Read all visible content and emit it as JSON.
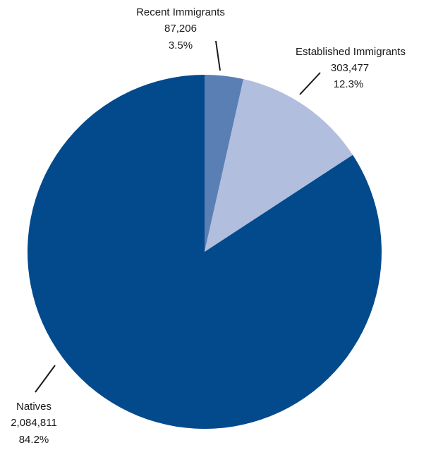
{
  "chart_data": {
    "type": "pie",
    "title": "",
    "start_angle_deg": 0,
    "direction": "clockwise",
    "slices": [
      {
        "name": "Recent Immigrants",
        "value": 87206,
        "value_label": "87,206",
        "percent_label": "3.5%",
        "color": "#5a7fb5"
      },
      {
        "name": "Established Immigrants",
        "value": 303477,
        "value_label": "303,477",
        "percent_label": "12.3%",
        "color": "#b2bedd"
      },
      {
        "name": "Natives",
        "value": 2084811,
        "value_label": "2,084,811",
        "percent_label": "84.2%",
        "color": "#034a8d"
      }
    ]
  }
}
